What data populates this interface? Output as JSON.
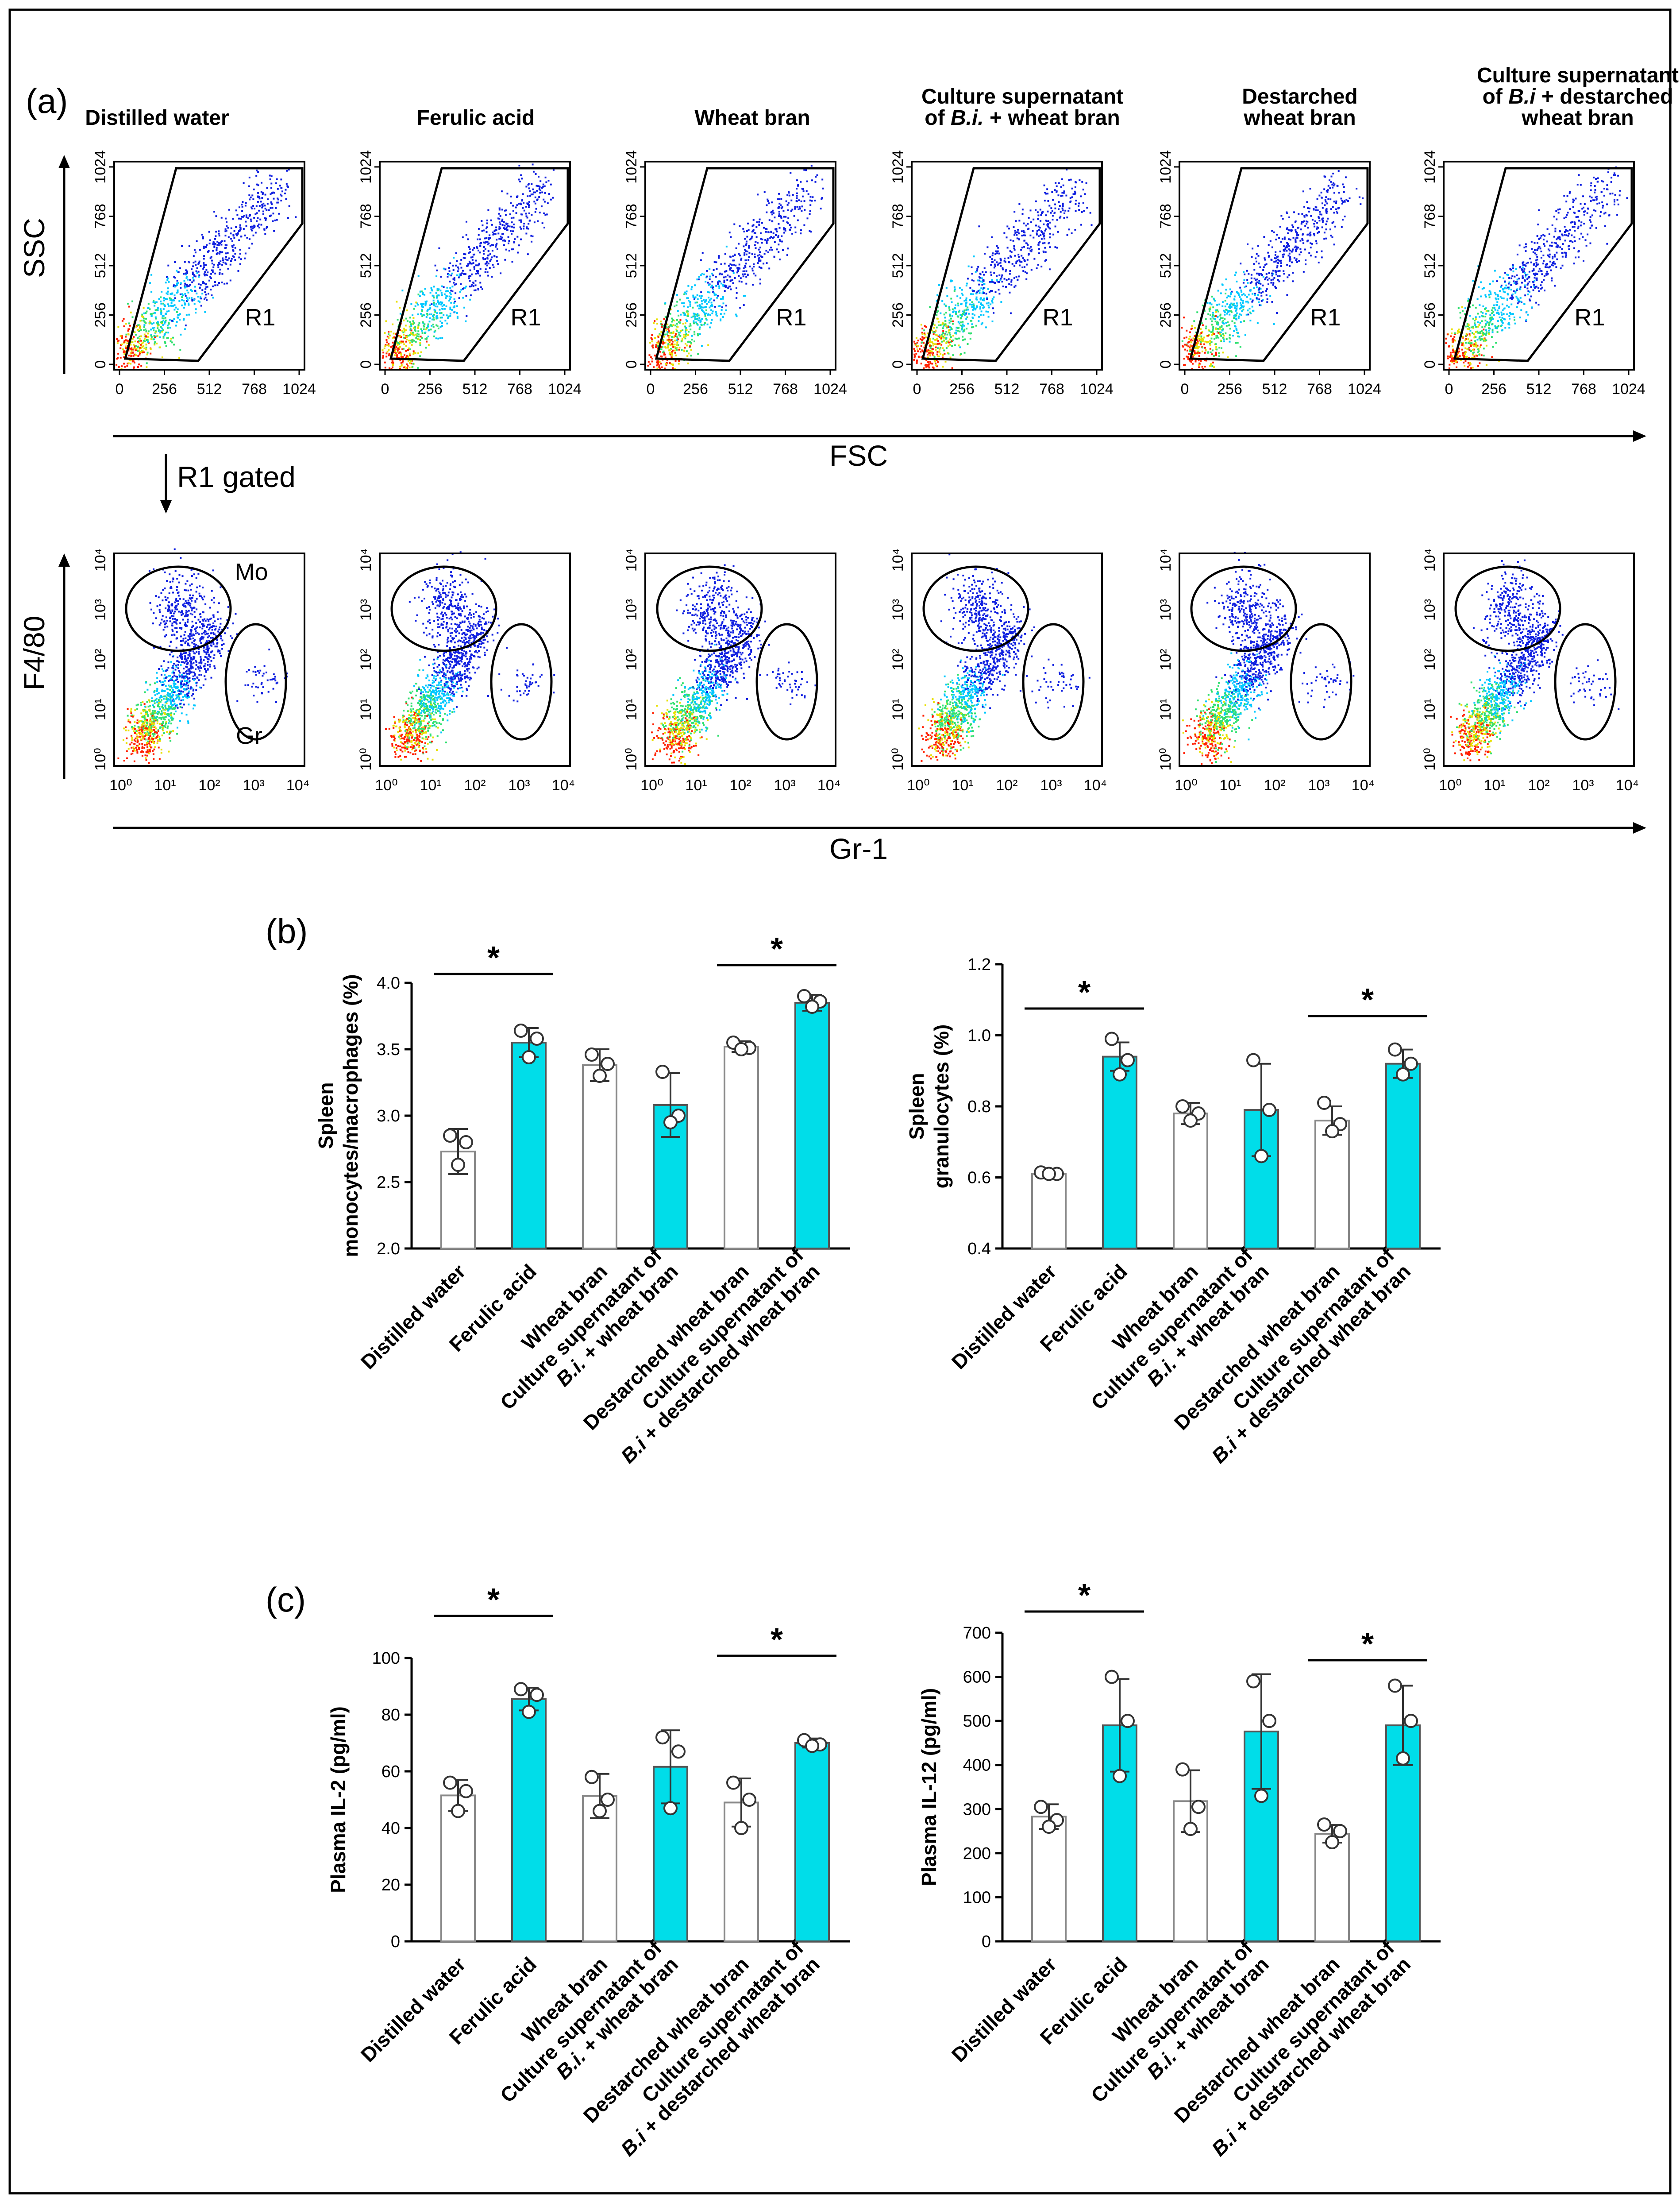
{
  "figure": {
    "panel_labels": [
      "(a)",
      "(b)",
      "(c)"
    ],
    "groups_flow": [
      [
        "Distilled water"
      ],
      [
        "Ferulic acid"
      ],
      [
        "Wheat bran"
      ],
      [
        {
          "t": "Culture supernatant"
        },
        [
          {
            "t": "of "
          },
          {
            "t": "B.i.",
            "i": true
          },
          {
            "t": " + wheat bran"
          }
        ]
      ],
      [
        "Destarched",
        "wheat bran"
      ],
      [
        {
          "t": "Culture supernatant"
        },
        [
          {
            "t": "of "
          },
          {
            "t": "B.i",
            "i": true
          },
          {
            "t": " + destarched"
          }
        ],
        "wheat bran"
      ]
    ],
    "group_labels_bar": [
      [
        [
          {
            "t": "Distilled water"
          }
        ]
      ],
      [
        [
          {
            "t": "Ferulic acid"
          }
        ]
      ],
      [
        [
          {
            "t": "Wheat bran"
          }
        ]
      ],
      [
        [
          {
            "t": "Culture supernatant of"
          }
        ],
        [
          {
            "t": "B.i.",
            "i": true
          },
          {
            "t": " + wheat bran"
          }
        ]
      ],
      [
        [
          {
            "t": "Destarched wheat bran"
          }
        ]
      ],
      [
        [
          {
            "t": "Culture supernatant of"
          }
        ],
        [
          {
            "t": "B.i",
            "i": true
          },
          {
            "t": " + destarched wheat bran"
          }
        ]
      ]
    ],
    "bar_colors": [
      "#ffffff",
      "#00dde9",
      "#ffffff",
      "#00dde9",
      "#ffffff",
      "#00dde9"
    ],
    "gating": {
      "scatter_ticks": [
        "0",
        "256",
        "512",
        "768",
        "1024"
      ],
      "log_ticks": [
        "10⁰",
        "10¹",
        "10²",
        "10³",
        "10⁴"
      ],
      "row1_ylabel": "SSC",
      "row1_xlabel": "FSC",
      "row1_gate": "R1",
      "gated_note": "R1 gated",
      "row2_ylabel": "F4/80",
      "row2_xlabel": "Gr-1",
      "row2_gate_mo": "Mo",
      "row2_gate_gr": "Gr",
      "cloud_colors": [
        "#1020e0",
        "#00c8ff",
        "#30e070",
        "#e8e000",
        "#ff2000"
      ]
    },
    "significance": "*"
  },
  "chart_data": [
    {
      "type": "bar",
      "panel": "b",
      "ylabel": [
        "Spleen",
        "monocytes/macrophages (%)"
      ],
      "ylim": [
        2.0,
        4.0
      ],
      "yticks": [
        "2.0",
        "2.5",
        "3.0",
        "3.5",
        "4.0"
      ],
      "values": [
        2.73,
        3.55,
        3.38,
        3.08,
        3.52,
        3.85
      ],
      "errors": [
        0.17,
        0.11,
        0.12,
        0.24,
        0.04,
        0.06
      ],
      "points": [
        [
          2.85,
          2.8,
          2.63
        ],
        [
          3.64,
          3.58,
          3.44
        ],
        [
          3.46,
          3.39,
          3.3
        ],
        [
          3.33,
          3.0,
          2.95
        ],
        [
          3.55,
          3.51,
          3.5
        ],
        [
          3.9,
          3.86,
          3.82
        ]
      ],
      "significance": [
        [
          0,
          1
        ],
        [
          4,
          5
        ]
      ]
    },
    {
      "type": "bar",
      "panel": "b",
      "ylabel": [
        "Spleen",
        "granulocytes (%)"
      ],
      "ylim": [
        0.4,
        1.2
      ],
      "yticks": [
        "0.4",
        "0.6",
        "0.8",
        "1.0",
        "1.2"
      ],
      "values": [
        0.61,
        0.94,
        0.78,
        0.79,
        0.76,
        0.92
      ],
      "errors": [
        0.005,
        0.04,
        0.03,
        0.13,
        0.04,
        0.04
      ],
      "points": [
        [
          0.614,
          0.61,
          0.61
        ],
        [
          0.99,
          0.93,
          0.89
        ],
        [
          0.8,
          0.78,
          0.76
        ],
        [
          0.93,
          0.79,
          0.66
        ],
        [
          0.81,
          0.75,
          0.73
        ],
        [
          0.96,
          0.92,
          0.89
        ]
      ],
      "significance": [
        [
          0,
          1
        ],
        [
          4,
          5
        ]
      ]
    },
    {
      "type": "bar",
      "panel": "c",
      "ylabel": [
        "Plasma IL-2 (pg/ml)"
      ],
      "ylim": [
        0,
        100
      ],
      "yticks": [
        "0",
        "20",
        "40",
        "60",
        "80",
        "100"
      ],
      "values": [
        51.5,
        85.5,
        51.3,
        61.6,
        49.0,
        70.0
      ],
      "errors": [
        5.5,
        4.0,
        7.8,
        12.9,
        8.5,
        1.6
      ],
      "points": [
        [
          56.0,
          53.0,
          46.0
        ],
        [
          89.0,
          87.0,
          81.0
        ],
        [
          58.0,
          50.0,
          46.0
        ],
        [
          72.0,
          67.0,
          47.0
        ],
        [
          56.0,
          50.0,
          40.0
        ],
        [
          71.0,
          69.5,
          69.0
        ]
      ],
      "significance": [
        [
          0,
          1
        ],
        [
          4,
          5
        ]
      ]
    },
    {
      "type": "bar",
      "panel": "c",
      "ylabel": [
        "Plasma IL-12 (pg/ml)"
      ],
      "ylim": [
        0,
        700
      ],
      "yticks": [
        "0",
        "100",
        "200",
        "300",
        "400",
        "500",
        "600",
        "700"
      ],
      "values": [
        283,
        490,
        318,
        476,
        244,
        490
      ],
      "errors": [
        28,
        105,
        70,
        130,
        20,
        90
      ],
      "points": [
        [
          305,
          275,
          260
        ],
        [
          600,
          500,
          375
        ],
        [
          390,
          305,
          255
        ],
        [
          590,
          500,
          330
        ],
        [
          265,
          250,
          225
        ],
        [
          580,
          500,
          415
        ]
      ],
      "significance": [
        [
          0,
          1
        ],
        [
          4,
          5
        ]
      ]
    }
  ]
}
